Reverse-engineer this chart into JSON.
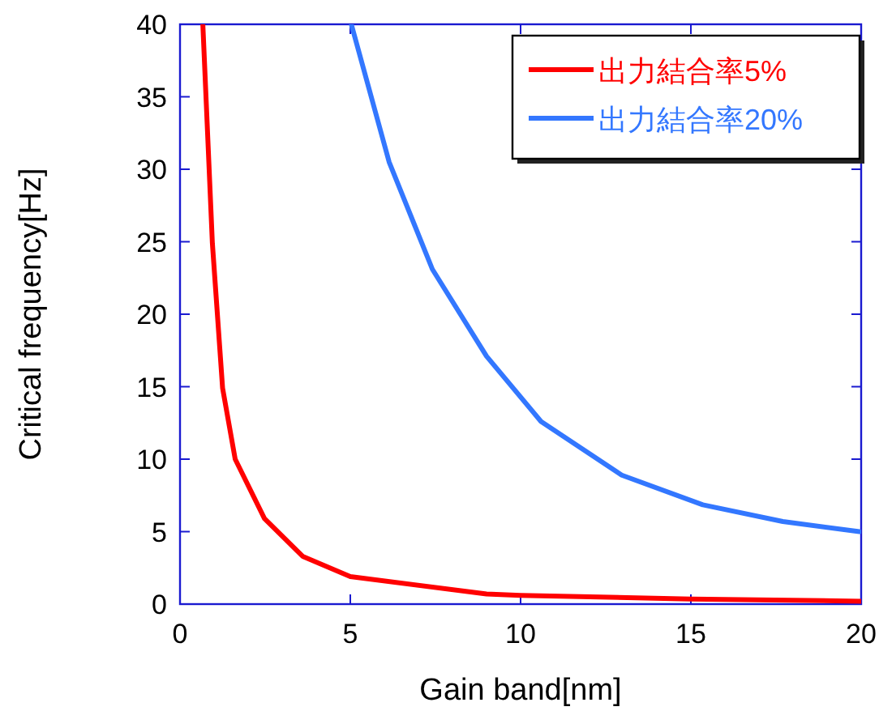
{
  "chart_data": {
    "type": "line",
    "xlabel": "Gain band[nm]",
    "ylabel": "Critical frequency[Hz]",
    "xlim": [
      0,
      20
    ],
    "ylim": [
      0,
      40
    ],
    "xticks": [
      0,
      5,
      10,
      15,
      20
    ],
    "yticks": [
      0,
      5,
      10,
      15,
      20,
      25,
      30,
      35,
      40
    ],
    "grid": false,
    "legend": "top right",
    "marker": "none",
    "line_style": "solid",
    "series": [
      {
        "name": "出力結合率5%",
        "color": "#ff0000",
        "x": [
          0.67,
          0.95,
          1.25,
          1.62,
          2.48,
          3.6,
          5,
          9,
          10,
          15,
          20
        ],
        "values": [
          40,
          24.9,
          14.9,
          10,
          5.9,
          3.3,
          1.9,
          0.7,
          0.6,
          0.35,
          0.2
        ]
      },
      {
        "name": "出力結合率20%",
        "color": "#3377ff",
        "x": [
          5.03,
          6.14,
          7.41,
          9,
          10.6,
          12.97,
          15.35,
          17.7,
          19.95
        ],
        "values": [
          40,
          30.5,
          23.1,
          17.1,
          12.6,
          8.9,
          6.85,
          5.7,
          5
        ]
      }
    ]
  }
}
